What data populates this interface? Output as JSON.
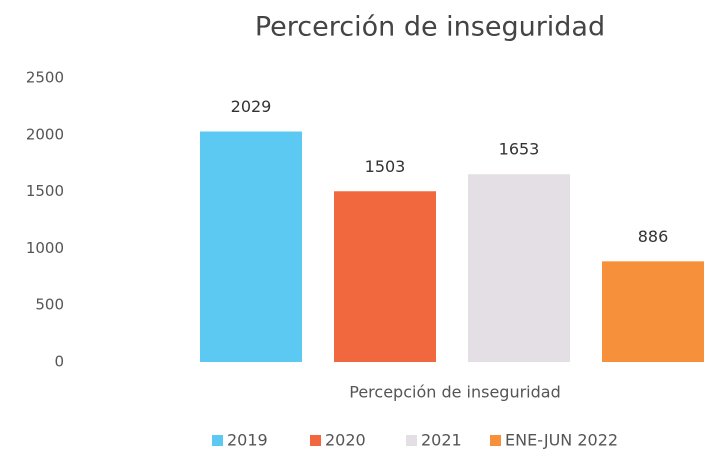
{
  "chart_data": {
    "type": "bar",
    "title": "Percerción de inseguridad",
    "categories": [
      "Percepción de inseguridad"
    ],
    "series": [
      {
        "name": "2019",
        "color": "#5bc9f1",
        "values": [
          2029
        ]
      },
      {
        "name": "2020",
        "color": "#f1683f",
        "values": [
          1503
        ]
      },
      {
        "name": "2021",
        "color": "#e4dfe4",
        "values": [
          1653
        ]
      },
      {
        "name": "ENE-JUN 2022",
        "color": "#f6903a",
        "values": [
          886
        ]
      }
    ],
    "ylim": [
      0,
      2500
    ],
    "yticks": [
      0,
      500,
      1000,
      1500,
      2000,
      2500
    ],
    "grid": false
  }
}
